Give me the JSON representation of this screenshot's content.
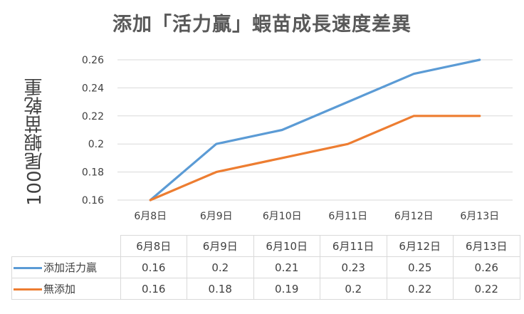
{
  "chart_data": {
    "type": "line",
    "title": "添加「活力贏」蝦苗成長速度差異",
    "ylabel": "100尾蝦苗乾重",
    "xlabel": "",
    "categories": [
      "6月8日",
      "6月9日",
      "6月10日",
      "6月11日",
      "6月12日",
      "6月13日"
    ],
    "ylim": [
      0.16,
      0.26
    ],
    "yticks": [
      "0.26",
      "0.24",
      "0.22",
      "0.2",
      "0.18",
      "0.16"
    ],
    "grid": true,
    "legend": "data-table",
    "series": [
      {
        "name": "添加活力贏",
        "color": "#5b9bd5",
        "values": [
          0.16,
          0.2,
          0.21,
          0.23,
          0.25,
          0.26
        ],
        "labels": [
          "0.16",
          "0.2",
          "0.21",
          "0.23",
          "0.25",
          "0.26"
        ]
      },
      {
        "name": "無添加",
        "color": "#ed7d31",
        "values": [
          0.16,
          0.18,
          0.19,
          0.2,
          0.22,
          0.22
        ],
        "labels": [
          "0.16",
          "0.18",
          "0.19",
          "0.2",
          "0.22",
          "0.22"
        ]
      }
    ]
  }
}
